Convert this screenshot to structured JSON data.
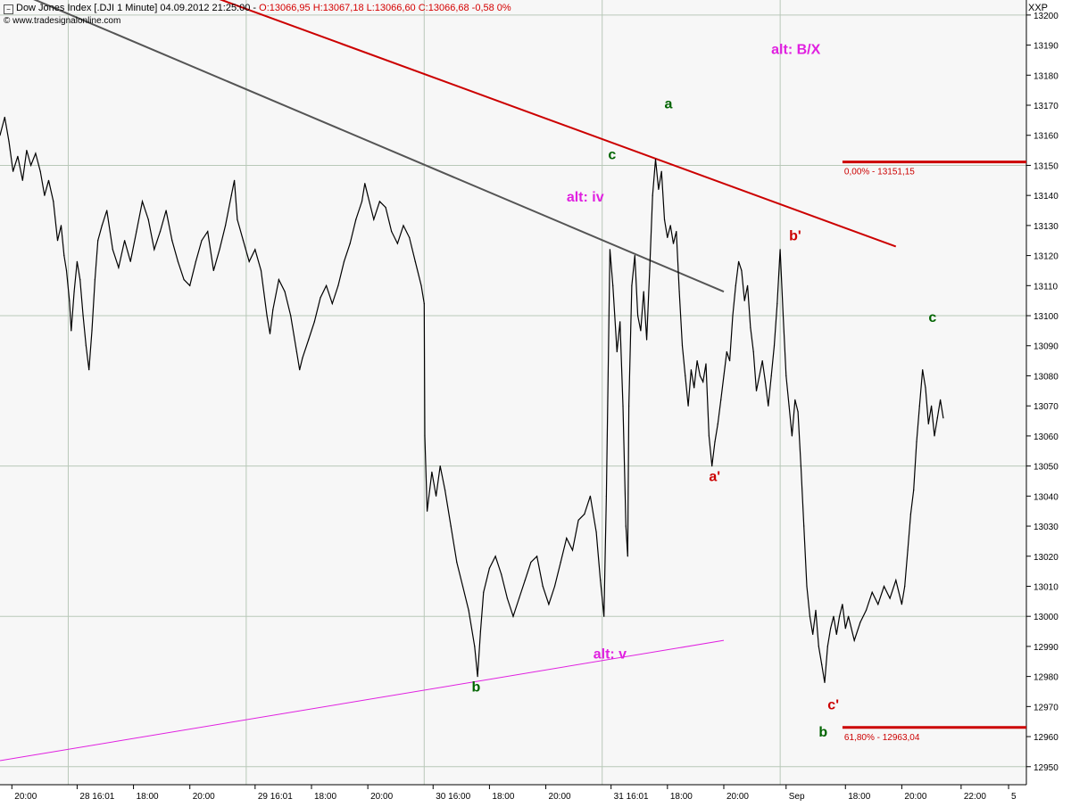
{
  "header": {
    "instrument": "Dow Jones Index [.DJI  1 Minute]",
    "datetime": "04.09.2012 21:25:00",
    "ohlc": "O:13066,95 H:13067,18 L:13066,60 C:13066,68 -0,58 0%",
    "copyright": "© www.tradesignalonline.com",
    "unit": "XXP"
  },
  "chart_data": {
    "type": "line",
    "title": "Dow Jones Index [.DJI  1 Minute]",
    "ylim": [
      12944,
      13205
    ],
    "y_ticks": [
      12950,
      12960,
      12970,
      12980,
      12990,
      13000,
      13010,
      13020,
      13030,
      13040,
      13050,
      13060,
      13070,
      13080,
      13090,
      13100,
      13110,
      13120,
      13130,
      13140,
      13150,
      13160,
      13170,
      13180,
      13190,
      13200
    ],
    "x_ticks": [
      {
        "t": 0.2,
        "label": "20:00"
      },
      {
        "t": 1.3,
        "label": "28 16:01"
      },
      {
        "t": 2.25,
        "label": "18:00"
      },
      {
        "t": 3.2,
        "label": "20:00"
      },
      {
        "t": 4.3,
        "label": "29 16:01"
      },
      {
        "t": 5.25,
        "label": "18:00"
      },
      {
        "t": 6.2,
        "label": "20:00"
      },
      {
        "t": 7.3,
        "label": "30 16:00"
      },
      {
        "t": 8.25,
        "label": "18:00"
      },
      {
        "t": 9.2,
        "label": "20:00"
      },
      {
        "t": 10.3,
        "label": "31 16:01"
      },
      {
        "t": 11.25,
        "label": "18:00"
      },
      {
        "t": 12.2,
        "label": "20:00"
      },
      {
        "t": 13.25,
        "label": "Sep"
      },
      {
        "t": 14.25,
        "label": "18:00"
      },
      {
        "t": 15.2,
        "label": "20:00"
      },
      {
        "t": 16.2,
        "label": "22:00"
      },
      {
        "t": 17.0,
        "label": "5"
      }
    ],
    "v_grid": [
      1.15,
      4.15,
      7.15,
      10.15,
      13.15
    ],
    "grid": true,
    "series": [
      {
        "color": "#000000",
        "points": [
          [
            0.0,
            13160
          ],
          [
            0.08,
            13166
          ],
          [
            0.15,
            13158
          ],
          [
            0.22,
            13148
          ],
          [
            0.3,
            13153
          ],
          [
            0.38,
            13145
          ],
          [
            0.45,
            13155
          ],
          [
            0.52,
            13150
          ],
          [
            0.6,
            13154
          ],
          [
            0.68,
            13148
          ],
          [
            0.75,
            13140
          ],
          [
            0.82,
            13145
          ],
          [
            0.9,
            13138
          ],
          [
            0.97,
            13125
          ],
          [
            1.03,
            13130
          ],
          [
            1.08,
            13120
          ],
          [
            1.12,
            13115
          ],
          [
            1.17,
            13105
          ],
          [
            1.2,
            13095
          ],
          [
            1.25,
            13108
          ],
          [
            1.3,
            13118
          ],
          [
            1.35,
            13112
          ],
          [
            1.4,
            13100
          ],
          [
            1.45,
            13090
          ],
          [
            1.5,
            13082
          ],
          [
            1.55,
            13095
          ],
          [
            1.6,
            13112
          ],
          [
            1.65,
            13125
          ],
          [
            1.72,
            13130
          ],
          [
            1.8,
            13135
          ],
          [
            1.9,
            13122
          ],
          [
            2.0,
            13116
          ],
          [
            2.1,
            13125
          ],
          [
            2.2,
            13118
          ],
          [
            2.3,
            13128
          ],
          [
            2.4,
            13138
          ],
          [
            2.5,
            13132
          ],
          [
            2.6,
            13122
          ],
          [
            2.7,
            13128
          ],
          [
            2.8,
            13135
          ],
          [
            2.9,
            13125
          ],
          [
            3.0,
            13118
          ],
          [
            3.1,
            13112
          ],
          [
            3.2,
            13110
          ],
          [
            3.3,
            13118
          ],
          [
            3.4,
            13125
          ],
          [
            3.5,
            13128
          ],
          [
            3.6,
            13115
          ],
          [
            3.7,
            13122
          ],
          [
            3.8,
            13130
          ],
          [
            3.9,
            13140
          ],
          [
            3.95,
            13145
          ],
          [
            4.0,
            13132
          ],
          [
            4.1,
            13125
          ],
          [
            4.2,
            13118
          ],
          [
            4.3,
            13122
          ],
          [
            4.4,
            13115
          ],
          [
            4.5,
            13100
          ],
          [
            4.55,
            13094
          ],
          [
            4.6,
            13102
          ],
          [
            4.7,
            13112
          ],
          [
            4.8,
            13108
          ],
          [
            4.9,
            13100
          ],
          [
            5.0,
            13088
          ],
          [
            5.05,
            13082
          ],
          [
            5.1,
            13086
          ],
          [
            5.2,
            13092
          ],
          [
            5.3,
            13098
          ],
          [
            5.4,
            13106
          ],
          [
            5.5,
            13110
          ],
          [
            5.6,
            13104
          ],
          [
            5.7,
            13110
          ],
          [
            5.8,
            13118
          ],
          [
            5.9,
            13124
          ],
          [
            6.0,
            13132
          ],
          [
            6.1,
            13138
          ],
          [
            6.15,
            13144
          ],
          [
            6.2,
            13140
          ],
          [
            6.3,
            13132
          ],
          [
            6.4,
            13138
          ],
          [
            6.5,
            13136
          ],
          [
            6.6,
            13128
          ],
          [
            6.7,
            13124
          ],
          [
            6.8,
            13130
          ],
          [
            6.9,
            13126
          ],
          [
            7.0,
            13118
          ],
          [
            7.1,
            13110
          ],
          [
            7.15,
            13104
          ],
          [
            7.16,
            13060
          ],
          [
            7.2,
            13035
          ],
          [
            7.28,
            13048
          ],
          [
            7.35,
            13040
          ],
          [
            7.42,
            13050
          ],
          [
            7.5,
            13042
          ],
          [
            7.6,
            13030
          ],
          [
            7.7,
            13018
          ],
          [
            7.8,
            13010
          ],
          [
            7.9,
            13002
          ],
          [
            8.0,
            12990
          ],
          [
            8.05,
            12980
          ],
          [
            8.1,
            12995
          ],
          [
            8.15,
            13008
          ],
          [
            8.25,
            13016
          ],
          [
            8.35,
            13020
          ],
          [
            8.45,
            13014
          ],
          [
            8.55,
            13006
          ],
          [
            8.65,
            13000
          ],
          [
            8.75,
            13006
          ],
          [
            8.85,
            13012
          ],
          [
            8.95,
            13018
          ],
          [
            9.05,
            13020
          ],
          [
            9.15,
            13010
          ],
          [
            9.25,
            13004
          ],
          [
            9.35,
            13010
          ],
          [
            9.45,
            13018
          ],
          [
            9.55,
            13026
          ],
          [
            9.65,
            13022
          ],
          [
            9.75,
            13032
          ],
          [
            9.85,
            13034
          ],
          [
            9.95,
            13040
          ],
          [
            10.05,
            13028
          ],
          [
            10.12,
            13012
          ],
          [
            10.18,
            13000
          ],
          [
            10.22,
            13040
          ],
          [
            10.28,
            13122
          ],
          [
            10.33,
            13110
          ],
          [
            10.4,
            13088
          ],
          [
            10.45,
            13098
          ],
          [
            10.5,
            13070
          ],
          [
            10.55,
            13030
          ],
          [
            10.58,
            13020
          ],
          [
            10.6,
            13070
          ],
          [
            10.65,
            13110
          ],
          [
            10.7,
            13120
          ],
          [
            10.75,
            13100
          ],
          [
            10.8,
            13095
          ],
          [
            10.85,
            13108
          ],
          [
            10.9,
            13092
          ],
          [
            10.95,
            13115
          ],
          [
            11.0,
            13140
          ],
          [
            11.05,
            13152
          ],
          [
            11.1,
            13142
          ],
          [
            11.15,
            13148
          ],
          [
            11.2,
            13132
          ],
          [
            11.25,
            13126
          ],
          [
            11.3,
            13130
          ],
          [
            11.35,
            13124
          ],
          [
            11.4,
            13128
          ],
          [
            11.45,
            13108
          ],
          [
            11.5,
            13090
          ],
          [
            11.55,
            13080
          ],
          [
            11.6,
            13070
          ],
          [
            11.65,
            13082
          ],
          [
            11.7,
            13076
          ],
          [
            11.75,
            13085
          ],
          [
            11.8,
            13080
          ],
          [
            11.85,
            13078
          ],
          [
            11.9,
            13084
          ],
          [
            11.95,
            13060
          ],
          [
            12.0,
            13050
          ],
          [
            12.05,
            13058
          ],
          [
            12.1,
            13064
          ],
          [
            12.15,
            13072
          ],
          [
            12.2,
            13080
          ],
          [
            12.25,
            13088
          ],
          [
            12.3,
            13085
          ],
          [
            12.35,
            13100
          ],
          [
            12.4,
            13110
          ],
          [
            12.45,
            13118
          ],
          [
            12.5,
            13115
          ],
          [
            12.55,
            13105
          ],
          [
            12.6,
            13110
          ],
          [
            12.65,
            13096
          ],
          [
            12.7,
            13088
          ],
          [
            12.75,
            13075
          ],
          [
            12.8,
            13080
          ],
          [
            12.85,
            13085
          ],
          [
            12.9,
            13078
          ],
          [
            12.95,
            13070
          ],
          [
            13.0,
            13080
          ],
          [
            13.05,
            13090
          ],
          [
            13.1,
            13104
          ],
          [
            13.15,
            13122
          ],
          [
            13.2,
            13100
          ],
          [
            13.25,
            13080
          ],
          [
            13.3,
            13070
          ],
          [
            13.35,
            13060
          ],
          [
            13.4,
            13072
          ],
          [
            13.45,
            13068
          ],
          [
            13.5,
            13050
          ],
          [
            13.55,
            13030
          ],
          [
            13.6,
            13010
          ],
          [
            13.65,
            13000
          ],
          [
            13.7,
            12994
          ],
          [
            13.75,
            13002
          ],
          [
            13.8,
            12990
          ],
          [
            13.85,
            12984
          ],
          [
            13.9,
            12978
          ],
          [
            13.95,
            12990
          ],
          [
            14.0,
            12996
          ],
          [
            14.05,
            13000
          ],
          [
            14.1,
            12994
          ],
          [
            14.15,
            13000
          ],
          [
            14.2,
            13004
          ],
          [
            14.25,
            12996
          ],
          [
            14.3,
            13000
          ],
          [
            14.4,
            12992
          ],
          [
            14.5,
            12998
          ],
          [
            14.6,
            13002
          ],
          [
            14.7,
            13008
          ],
          [
            14.8,
            13004
          ],
          [
            14.9,
            13010
          ],
          [
            15.0,
            13006
          ],
          [
            15.1,
            13012
          ],
          [
            15.2,
            13004
          ],
          [
            15.25,
            13010
          ],
          [
            15.3,
            13022
          ],
          [
            15.35,
            13034
          ],
          [
            15.4,
            13042
          ],
          [
            15.45,
            13058
          ],
          [
            15.5,
            13070
          ],
          [
            15.55,
            13082
          ],
          [
            15.6,
            13076
          ],
          [
            15.65,
            13064
          ],
          [
            15.7,
            13070
          ],
          [
            15.75,
            13060
          ],
          [
            15.8,
            13066
          ],
          [
            15.85,
            13072
          ],
          [
            15.9,
            13066
          ]
        ]
      }
    ],
    "trendlines": [
      {
        "color": "#cc0000",
        "width": 2,
        "from": [
          3.6,
          13206
        ],
        "to": [
          15.1,
          13123
        ]
      },
      {
        "color": "#555555",
        "width": 2,
        "from": [
          0.0,
          13210
        ],
        "to": [
          12.2,
          13108
        ]
      },
      {
        "color": "#e020e0",
        "width": 1,
        "from": [
          0.0,
          12952
        ],
        "to": [
          12.2,
          12992
        ]
      }
    ],
    "levels": [
      {
        "value": 13151.15,
        "label": "0,00% - 13151,15",
        "from_t": 14.2,
        "color": "#cc0000"
      },
      {
        "value": 12963.04,
        "label": "61,80% - 12963,04",
        "from_t": 14.2,
        "color": "#cc0000"
      }
    ],
    "annotations": [
      {
        "text": "alt: B/X",
        "t": 13.0,
        "y": 13187,
        "color": "#e020e0"
      },
      {
        "text": "a",
        "t": 11.2,
        "y": 13169,
        "color": "#006400"
      },
      {
        "text": "c",
        "t": 10.25,
        "y": 13152,
        "color": "#006400"
      },
      {
        "text": "alt: iv",
        "t": 9.55,
        "y": 13138,
        "color": "#e020e0"
      },
      {
        "text": "b'",
        "t": 13.3,
        "y": 13125,
        "color": "#cc0000"
      },
      {
        "text": "c",
        "t": 15.65,
        "y": 13098,
        "color": "#006400"
      },
      {
        "text": "a'",
        "t": 11.95,
        "y": 13045,
        "color": "#cc0000"
      },
      {
        "text": "alt: v",
        "t": 10.0,
        "y": 12986,
        "color": "#e020e0"
      },
      {
        "text": "b",
        "t": 7.95,
        "y": 12975,
        "color": "#006400"
      },
      {
        "text": "c'",
        "t": 13.95,
        "y": 12969,
        "color": "#cc0000"
      },
      {
        "text": "b",
        "t": 13.8,
        "y": 12960,
        "color": "#006400"
      }
    ]
  }
}
